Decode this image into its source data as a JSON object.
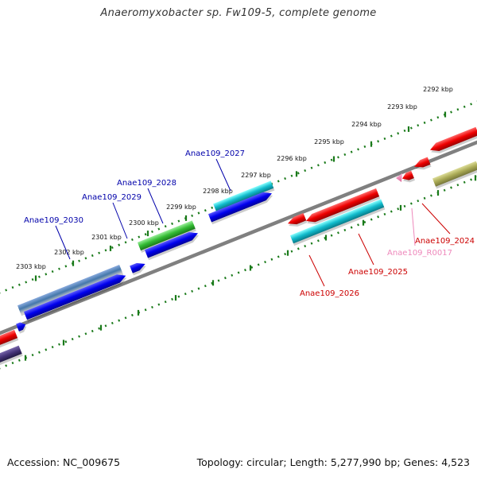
{
  "title": "Anaeromyxobacter sp. Fw109-5, complete genome",
  "footer": {
    "accession": "Accession: NC_009675",
    "summary": "Topology: circular; Length: 5,277,990 bp; Genes: 4,523"
  },
  "ticks": [
    {
      "label": "2292 kbp"
    },
    {
      "label": "2293 kbp"
    },
    {
      "label": "2294 kbp"
    },
    {
      "label": "2295 kbp"
    },
    {
      "label": "2296 kbp"
    },
    {
      "label": "2297 kbp"
    },
    {
      "label": "2298 kbp"
    },
    {
      "label": "2299 kbp"
    },
    {
      "label": "2300 kbp"
    },
    {
      "label": "2301 kbp"
    },
    {
      "label": "2302 kbp"
    },
    {
      "label": "2303 kbp"
    }
  ],
  "gene_labels": [
    {
      "text": "Anae109_2030",
      "color": "#0000aa"
    },
    {
      "text": "Anae109_2029",
      "color": "#0000aa"
    },
    {
      "text": "Anae109_2028",
      "color": "#0000aa"
    },
    {
      "text": "Anae109_2027",
      "color": "#0000aa"
    },
    {
      "text": "Anae109_2026",
      "color": "#cc0000"
    },
    {
      "text": "Anae109_2025",
      "color": "#cc0000"
    },
    {
      "text": "Anae109_R0017",
      "color": "#ee88bb"
    },
    {
      "text": "Anae109_2024",
      "color": "#cc0000"
    }
  ],
  "colors": {
    "cds_forward": "#0000ee",
    "cds_reverse": "#ee0000",
    "green_feature": "#33bb33",
    "cyan_feature": "#11bbcc",
    "steelblue_feature": "#4477aa",
    "olive_feature": "#aaaa55",
    "purple_feature": "#443377",
    "rna_feature": "#ee88bb",
    "backbone": "#808080",
    "ruler_dots": "#1a7a1a"
  }
}
